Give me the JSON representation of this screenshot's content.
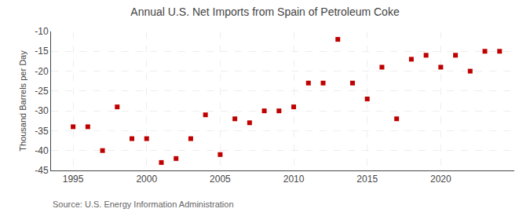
{
  "chart_data": {
    "type": "scatter",
    "title": "Annual U.S. Net Imports from Spain of Petroleum Coke",
    "ylabel": "Thousand Barrels per Day",
    "annotations": [
      "Source: U.S. Energy Information Administration"
    ],
    "x": [
      1995,
      1996,
      1997,
      1998,
      1999,
      2000,
      2001,
      2002,
      2003,
      2004,
      2005,
      2006,
      2007,
      2008,
      2009,
      2010,
      2011,
      2012,
      2013,
      2014,
      2015,
      2016,
      2017,
      2018,
      2019,
      2020,
      2021,
      2022,
      2023,
      2024
    ],
    "values": [
      -34,
      -34,
      -40,
      -29,
      -37,
      -37,
      -43,
      -42,
      -37,
      -31,
      -41,
      -32,
      -33,
      -30,
      -30,
      -29,
      -23,
      -23,
      -12,
      -23,
      -27,
      -19,
      -32,
      -17,
      -16,
      -19,
      -16,
      -20,
      -15,
      -15
    ],
    "color": "#c00000",
    "marker": "square",
    "xlim": [
      1993.5,
      2025
    ],
    "xticks": [
      1995,
      2000,
      2005,
      2010,
      2015,
      2020
    ],
    "ylim": [
      -45,
      -10
    ],
    "yticks": [
      -10,
      -15,
      -20,
      -25,
      -30,
      -35,
      -40,
      -45
    ],
    "grid": true
  }
}
